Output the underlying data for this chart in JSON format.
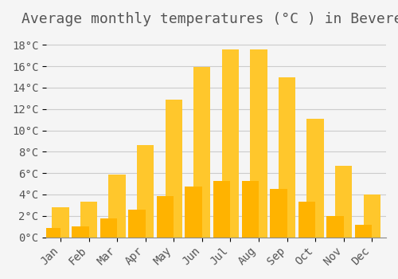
{
  "title": "Average monthly temperatures (°C ) in Beveren",
  "months": [
    "Jan",
    "Feb",
    "Mar",
    "Apr",
    "May",
    "Jun",
    "Jul",
    "Aug",
    "Sep",
    "Oct",
    "Nov",
    "Dec"
  ],
  "values": [
    2.8,
    3.3,
    5.9,
    8.6,
    12.9,
    15.9,
    17.6,
    17.6,
    15.0,
    11.1,
    6.7,
    4.0
  ],
  "bar_color_top": "#FFC72C",
  "bar_color_bottom": "#FFB300",
  "background_color": "#F5F5F5",
  "grid_color": "#CCCCCC",
  "text_color": "#555555",
  "ylim": [
    0,
    19
  ],
  "ytick_step": 2,
  "title_fontsize": 13,
  "tick_fontsize": 10,
  "font_family": "monospace"
}
